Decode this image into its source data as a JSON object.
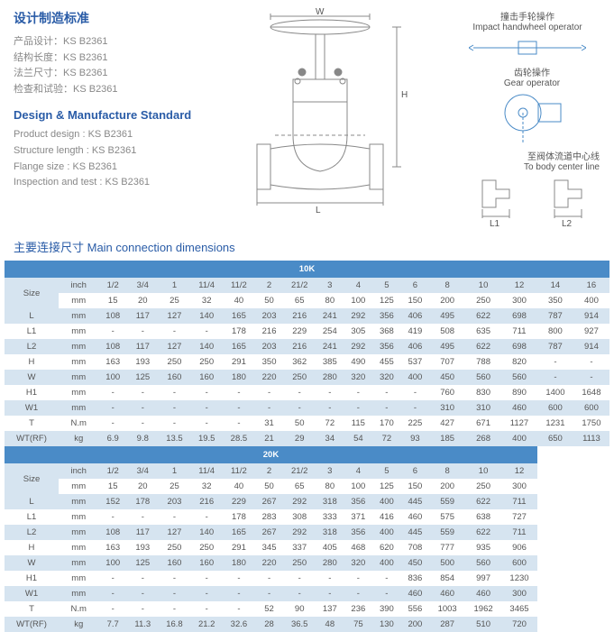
{
  "standards": {
    "title_cn": "设计制造标准",
    "lines_cn": [
      {
        "label": "产品设计",
        "value": "KS B2361"
      },
      {
        "label": "结构长度",
        "value": "KS B2361"
      },
      {
        "label": "法兰尺寸",
        "value": "KS B2361"
      },
      {
        "label": "检查和试验",
        "value": "KS B2361"
      }
    ],
    "title_en": "Design & Manufacture Standard",
    "lines_en": [
      {
        "label": "Product design",
        "value": "KS B2361"
      },
      {
        "label": "Structure length",
        "value": "KS B2361"
      },
      {
        "label": "Flange size",
        "value": "KS B2361"
      },
      {
        "label": "Inspection and test",
        "value": "KS B2361"
      }
    ]
  },
  "diagram_labels": {
    "w": "W",
    "h": "H",
    "l": "L",
    "l1": "L1",
    "l2": "L2",
    "impact_cn": "撞击手轮操作",
    "impact_en": "Impact handwheel operator",
    "gear_cn": "齿轮操作",
    "gear_en": "Gear operator",
    "body_cn": "至阀体流道中心线",
    "body_en": "To body center line"
  },
  "section_title": "主要连接尺寸   Main connection  dimensions",
  "tables": {
    "10K": {
      "header": "10K",
      "size_inch": [
        "1/2",
        "3/4",
        "1",
        "11/4",
        "11/2",
        "2",
        "21/2",
        "3",
        "4",
        "5",
        "6",
        "8",
        "10",
        "12",
        "14",
        "16"
      ],
      "size_mm": [
        "15",
        "20",
        "25",
        "32",
        "40",
        "50",
        "65",
        "80",
        "100",
        "125",
        "150",
        "200",
        "250",
        "300",
        "350",
        "400"
      ],
      "rows": [
        {
          "label": "L",
          "unit": "mm",
          "vals": [
            "108",
            "117",
            "127",
            "140",
            "165",
            "203",
            "216",
            "241",
            "292",
            "356",
            "406",
            "495",
            "622",
            "698",
            "787",
            "914"
          ]
        },
        {
          "label": "L1",
          "unit": "mm",
          "vals": [
            "-",
            "-",
            "-",
            "-",
            "178",
            "216",
            "229",
            "254",
            "305",
            "368",
            "419",
            "508",
            "635",
            "711",
            "800",
            "927"
          ]
        },
        {
          "label": "L2",
          "unit": "mm",
          "vals": [
            "108",
            "117",
            "127",
            "140",
            "165",
            "203",
            "216",
            "241",
            "292",
            "356",
            "406",
            "495",
            "622",
            "698",
            "787",
            "914"
          ]
        },
        {
          "label": "H",
          "unit": "mm",
          "vals": [
            "163",
            "193",
            "250",
            "250",
            "291",
            "350",
            "362",
            "385",
            "490",
            "455",
            "537",
            "707",
            "788",
            "820",
            "-",
            "-"
          ]
        },
        {
          "label": "W",
          "unit": "mm",
          "vals": [
            "100",
            "125",
            "160",
            "160",
            "180",
            "220",
            "250",
            "280",
            "320",
            "320",
            "400",
            "450",
            "560",
            "560",
            "-",
            "-"
          ]
        },
        {
          "label": "H1",
          "unit": "mm",
          "vals": [
            "-",
            "-",
            "-",
            "-",
            "-",
            "-",
            "-",
            "-",
            "-",
            "-",
            "-",
            "760",
            "830",
            "890",
            "1400",
            "1648"
          ]
        },
        {
          "label": "W1",
          "unit": "mm",
          "vals": [
            "-",
            "-",
            "-",
            "-",
            "-",
            "-",
            "-",
            "-",
            "-",
            "-",
            "-",
            "310",
            "310",
            "460",
            "600",
            "600"
          ]
        },
        {
          "label": "T",
          "unit": "N.m",
          "vals": [
            "-",
            "-",
            "-",
            "-",
            "-",
            "31",
            "50",
            "72",
            "115",
            "170",
            "225",
            "427",
            "671",
            "1127",
            "1231",
            "1750"
          ]
        },
        {
          "label": "WT(RF)",
          "unit": "kg",
          "vals": [
            "6.9",
            "9.8",
            "13.5",
            "19.5",
            "28.5",
            "21",
            "29",
            "34",
            "54",
            "72",
            "93",
            "185",
            "268",
            "400",
            "650",
            "1113"
          ]
        }
      ]
    },
    "20K": {
      "header": "20K",
      "size_inch": [
        "1/2",
        "3/4",
        "1",
        "11/4",
        "11/2",
        "2",
        "21/2",
        "3",
        "4",
        "5",
        "6",
        "8",
        "10",
        "12"
      ],
      "size_mm": [
        "15",
        "20",
        "25",
        "32",
        "40",
        "50",
        "65",
        "80",
        "100",
        "125",
        "150",
        "200",
        "250",
        "300"
      ],
      "rows": [
        {
          "label": "L",
          "unit": "mm",
          "vals": [
            "152",
            "178",
            "203",
            "216",
            "229",
            "267",
            "292",
            "318",
            "356",
            "400",
            "445",
            "559",
            "622",
            "711"
          ]
        },
        {
          "label": "L1",
          "unit": "mm",
          "vals": [
            "-",
            "-",
            "-",
            "-",
            "178",
            "283",
            "308",
            "333",
            "371",
            "416",
            "460",
            "575",
            "638",
            "727"
          ]
        },
        {
          "label": "L2",
          "unit": "mm",
          "vals": [
            "108",
            "117",
            "127",
            "140",
            "165",
            "267",
            "292",
            "318",
            "356",
            "400",
            "445",
            "559",
            "622",
            "711"
          ]
        },
        {
          "label": "H",
          "unit": "mm",
          "vals": [
            "163",
            "193",
            "250",
            "250",
            "291",
            "345",
            "337",
            "405",
            "468",
            "620",
            "708",
            "777",
            "935",
            "906"
          ]
        },
        {
          "label": "W",
          "unit": "mm",
          "vals": [
            "100",
            "125",
            "160",
            "160",
            "180",
            "220",
            "250",
            "280",
            "320",
            "400",
            "450",
            "500",
            "560",
            "600"
          ]
        },
        {
          "label": "H1",
          "unit": "mm",
          "vals": [
            "-",
            "-",
            "-",
            "-",
            "-",
            "-",
            "-",
            "-",
            "-",
            "-",
            "836",
            "854",
            "997",
            "1230"
          ]
        },
        {
          "label": "W1",
          "unit": "mm",
          "vals": [
            "-",
            "-",
            "-",
            "-",
            "-",
            "-",
            "-",
            "-",
            "-",
            "-",
            "460",
            "460",
            "460",
            "300"
          ]
        },
        {
          "label": "T",
          "unit": "N.m",
          "vals": [
            "-",
            "-",
            "-",
            "-",
            "-",
            "52",
            "90",
            "137",
            "236",
            "390",
            "556",
            "1003",
            "1962",
            "3465"
          ]
        },
        {
          "label": "WT(RF)",
          "unit": "kg",
          "vals": [
            "7.7",
            "11.3",
            "16.8",
            "21.2",
            "32.6",
            "28",
            "36.5",
            "48",
            "75",
            "130",
            "200",
            "287",
            "510",
            "720"
          ]
        }
      ]
    }
  },
  "style": {
    "title_color": "#2a5ca7",
    "header_bg": "#4a8bc7",
    "even_bg": "#d6e4f0",
    "text_color": "#555555",
    "table_font_size": 9.5
  }
}
